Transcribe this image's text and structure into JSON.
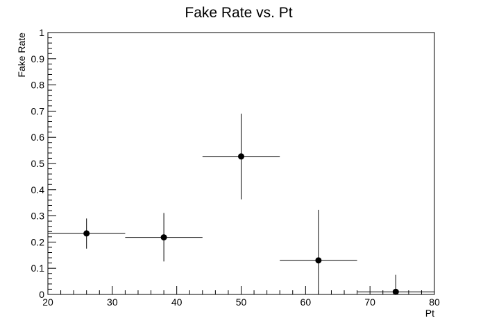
{
  "chart_data": {
    "type": "scatter",
    "title": "Fake Rate vs. Pt",
    "xlabel": "Pt",
    "ylabel": "Fake Rate",
    "xlim": [
      20,
      80
    ],
    "ylim": [
      0,
      1
    ],
    "x_ticks": [
      20,
      30,
      40,
      50,
      60,
      70,
      80
    ],
    "y_ticks": [
      0,
      0.1,
      0.2,
      0.3,
      0.4,
      0.5,
      0.6,
      0.7,
      0.8,
      0.9,
      1
    ],
    "grid": false,
    "points": [
      {
        "x": 26,
        "y": 0.233,
        "xerr": 6,
        "yerr_low": 0.058,
        "yerr_high": 0.057
      },
      {
        "x": 38,
        "y": 0.218,
        "xerr": 6,
        "yerr_low": 0.092,
        "yerr_high": 0.093
      },
      {
        "x": 50,
        "y": 0.527,
        "xerr": 6,
        "yerr_low": 0.164,
        "yerr_high": 0.163
      },
      {
        "x": 62,
        "y": 0.13,
        "xerr": 6,
        "yerr_low": 0.13,
        "yerr_high": 0.193
      },
      {
        "x": 74,
        "y": 0.01,
        "xerr": 6,
        "yerr_low": 0.01,
        "yerr_high": 0.065
      }
    ],
    "marker_color": "#000000"
  }
}
